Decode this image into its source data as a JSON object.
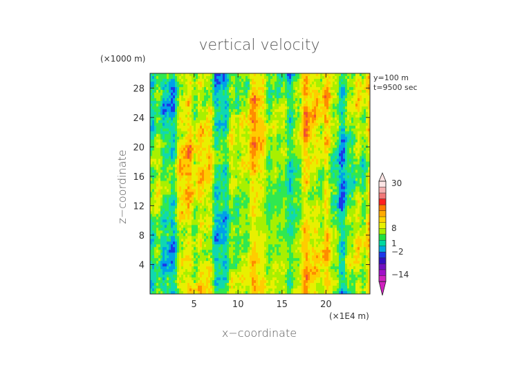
{
  "chart_data": {
    "type": "heatmap",
    "title": "vertical velocity",
    "xlabel": "x−coordinate",
    "ylabel": "z−coordinate",
    "x_unit": "(×1E4 m)",
    "y_unit": "(×1000 m)",
    "xlim": [
      0,
      25
    ],
    "ylim": [
      0,
      30
    ],
    "x_ticks": [
      5,
      10,
      15,
      20
    ],
    "y_ticks": [
      4,
      8,
      12,
      16,
      20,
      24,
      28
    ],
    "annotations": [
      "y=100 m",
      "t=9500 sec"
    ],
    "colorbar": {
      "tick_labels": [
        "30",
        "8",
        "1",
        "−2",
        "−14"
      ],
      "tick_values": [
        30,
        8,
        1,
        -2,
        -14
      ],
      "colors": [
        "#fce4e4",
        "#f5b0b0",
        "#f07878",
        "#ff2020",
        "#ff7a00",
        "#ffaa00",
        "#ffd400",
        "#e8f000",
        "#a8f000",
        "#20e040",
        "#00d8a0",
        "#00a8e0",
        "#1c38e8",
        "#3010c0",
        "#7010c0",
        "#a010c8",
        "#d020c0"
      ]
    },
    "field_palette": [
      "#1c38e8",
      "#00a0e8",
      "#10d8b0",
      "#30e850",
      "#a8f000",
      "#e8f000",
      "#ffcc00",
      "#ff8c00",
      "#f05030"
    ]
  }
}
